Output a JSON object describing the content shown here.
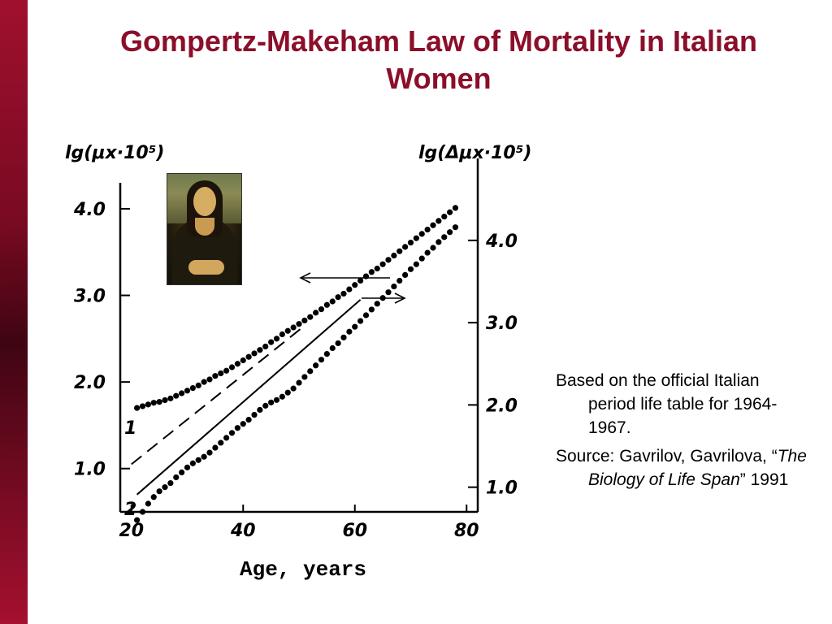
{
  "slide": {
    "title": "Gompertz-Makeham Law of Mortality in Italian Women",
    "notes": {
      "note1": "Based on the official Italian period life table for 1964-1967.",
      "note2_prefix": "Source: Gavrilov, Gavrilova, “",
      "note2_book": "The Biology of Life Span",
      "note2_suffix": "” 1991"
    },
    "portrait_icon": "mona-lisa-portrait-icon"
  },
  "chart_data": {
    "type": "scatter",
    "xlabel": "Age, years",
    "ylabel_left": "lg(μx·10⁵)",
    "ylabel_right": "lg(Δμx·10⁵)",
    "xlim": [
      18,
      82
    ],
    "ylim_left": [
      0.5,
      4.3
    ],
    "ylim_right": [
      0.7,
      4.7
    ],
    "x_ticks": [
      "20",
      "40",
      "60",
      "80"
    ],
    "x_tick_values": [
      20,
      40,
      60,
      80
    ],
    "y_ticks_left": [
      "1.0",
      "2.0",
      "3.0",
      "4.0"
    ],
    "y_tick_values_left": [
      1.0,
      2.0,
      3.0,
      4.0
    ],
    "y_ticks_right": [
      "1.0",
      "2.0",
      "3.0",
      "4.0"
    ],
    "y_tick_values_right": [
      1.0,
      2.0,
      3.0,
      4.0
    ],
    "series": [
      {
        "name": "1",
        "axis": "left",
        "points": [
          [
            21,
            1.7
          ],
          [
            22,
            1.72
          ],
          [
            23,
            1.74
          ],
          [
            24,
            1.76
          ],
          [
            25,
            1.77
          ],
          [
            26,
            1.79
          ],
          [
            27,
            1.81
          ],
          [
            28,
            1.84
          ],
          [
            29,
            1.87
          ],
          [
            30,
            1.9
          ],
          [
            31,
            1.93
          ],
          [
            32,
            1.96
          ],
          [
            33,
            2.0
          ],
          [
            34,
            2.03
          ],
          [
            35,
            2.07
          ],
          [
            36,
            2.1
          ],
          [
            37,
            2.13
          ],
          [
            38,
            2.17
          ],
          [
            39,
            2.21
          ],
          [
            40,
            2.25
          ],
          [
            41,
            2.29
          ],
          [
            42,
            2.33
          ],
          [
            43,
            2.37
          ],
          [
            44,
            2.41
          ],
          [
            45,
            2.46
          ],
          [
            46,
            2.5
          ],
          [
            47,
            2.55
          ],
          [
            48,
            2.59
          ],
          [
            49,
            2.63
          ],
          [
            50,
            2.67
          ],
          [
            51,
            2.71
          ],
          [
            52,
            2.75
          ],
          [
            53,
            2.8
          ],
          [
            54,
            2.84
          ],
          [
            55,
            2.89
          ],
          [
            56,
            2.93
          ],
          [
            57,
            2.98
          ],
          [
            58,
            3.02
          ],
          [
            59,
            3.07
          ],
          [
            60,
            3.12
          ],
          [
            61,
            3.17
          ],
          [
            62,
            3.22
          ],
          [
            63,
            3.27
          ],
          [
            64,
            3.31
          ],
          [
            65,
            3.36
          ],
          [
            66,
            3.41
          ],
          [
            67,
            3.46
          ],
          [
            68,
            3.51
          ],
          [
            69,
            3.56
          ],
          [
            70,
            3.61
          ],
          [
            71,
            3.66
          ],
          [
            72,
            3.71
          ],
          [
            73,
            3.76
          ],
          [
            74,
            3.81
          ],
          [
            75,
            3.86
          ],
          [
            76,
            3.91
          ],
          [
            77,
            3.96
          ],
          [
            78,
            4.01
          ]
        ]
      },
      {
        "name": "2",
        "axis": "right",
        "points": [
          [
            21,
            0.6
          ],
          [
            22,
            0.7
          ],
          [
            23,
            0.8
          ],
          [
            24,
            0.88
          ],
          [
            25,
            0.95
          ],
          [
            26,
            1.0
          ],
          [
            27,
            1.05
          ],
          [
            28,
            1.12
          ],
          [
            29,
            1.18
          ],
          [
            30,
            1.24
          ],
          [
            31,
            1.29
          ],
          [
            32,
            1.33
          ],
          [
            33,
            1.37
          ],
          [
            34,
            1.42
          ],
          [
            35,
            1.48
          ],
          [
            36,
            1.54
          ],
          [
            37,
            1.6
          ],
          [
            38,
            1.66
          ],
          [
            39,
            1.72
          ],
          [
            40,
            1.77
          ],
          [
            41,
            1.82
          ],
          [
            42,
            1.88
          ],
          [
            43,
            1.94
          ],
          [
            44,
            1.99
          ],
          [
            45,
            2.03
          ],
          [
            46,
            2.06
          ],
          [
            47,
            2.1
          ],
          [
            48,
            2.15
          ],
          [
            49,
            2.2
          ],
          [
            50,
            2.27
          ],
          [
            51,
            2.34
          ],
          [
            52,
            2.41
          ],
          [
            53,
            2.48
          ],
          [
            54,
            2.55
          ],
          [
            55,
            2.62
          ],
          [
            56,
            2.69
          ],
          [
            57,
            2.75
          ],
          [
            58,
            2.82
          ],
          [
            59,
            2.89
          ],
          [
            60,
            2.95
          ],
          [
            61,
            3.02
          ],
          [
            62,
            3.09
          ],
          [
            63,
            3.16
          ],
          [
            64,
            3.23
          ],
          [
            65,
            3.3
          ],
          [
            66,
            3.37
          ],
          [
            67,
            3.44
          ],
          [
            68,
            3.51
          ],
          [
            69,
            3.58
          ],
          [
            70,
            3.65
          ],
          [
            71,
            3.71
          ],
          [
            72,
            3.78
          ],
          [
            73,
            3.85
          ],
          [
            74,
            3.91
          ],
          [
            75,
            3.98
          ],
          [
            76,
            4.04
          ],
          [
            77,
            4.1
          ],
          [
            78,
            4.16
          ]
        ]
      }
    ],
    "lines": [
      {
        "name": "dashed",
        "axis": "left",
        "style": "dashed",
        "from": [
          20,
          1.05
        ],
        "to": [
          51,
          2.65
        ]
      },
      {
        "name": "solid",
        "axis": "left",
        "style": "solid",
        "from": [
          21,
          0.7
        ],
        "to": [
          61,
          2.95
        ]
      }
    ],
    "annotations": [
      {
        "text": "1",
        "series": "1"
      },
      {
        "text": "2",
        "series": "2"
      }
    ],
    "arrows": [
      {
        "direction": "left",
        "target_axis": "left"
      },
      {
        "direction": "right",
        "target_axis": "right"
      }
    ],
    "grid": false,
    "legend": "none"
  }
}
